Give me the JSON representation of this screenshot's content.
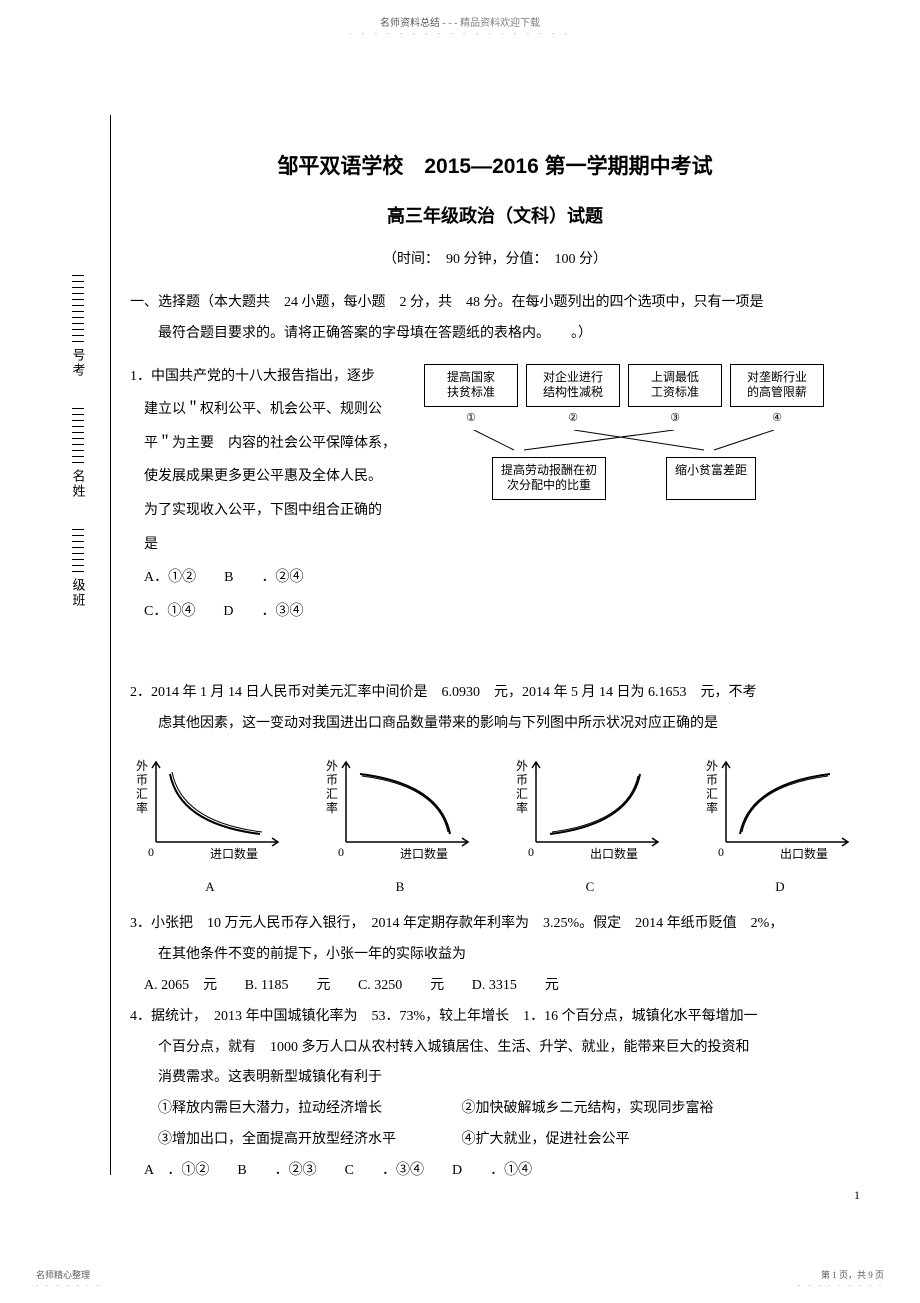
{
  "header": {
    "text_left": "名师资料总结 ",
    "separator": "- - -",
    "text_right": "精品资料欢迎下载"
  },
  "binding_labels": [
    "号考",
    "名姓",
    "级班"
  ],
  "title": "邹平双语学校　2015—2016 第一学期期中考试",
  "subtitle": "高三年级政治（文科）试题",
  "timeinfo": "（时间：　90 分钟，分值：　100 分）",
  "section1": {
    "line1": "一、选择题（本大题共　24 小题，每小题　2 分，共　48 分。在每小题列出的四个选项中，只有一项是",
    "line2": "最符合题目要求的。请将正确答案的字母填在答题纸的表格内。　　。）"
  },
  "q1": {
    "lines": [
      "1．中国共产党的十八大报告指出，逐步",
      "建立以＂权利公平、机会公平、规则公",
      "平＂为主要　内容的社会公平保障体系，",
      "使发展成果更多更公平惠及全体人民。",
      "为了实现收入公平，下图中组合正确的",
      "是",
      "A．①②　　B　　．②④",
      "C．①④　　D　　．③④"
    ],
    "boxes_top": [
      "提高国家\n扶贫标准",
      "对企业进行\n结构性减税",
      "上调最低\n工资标准",
      "对垄断行业\n的高管限薪"
    ],
    "circles": [
      "①",
      "②",
      "③",
      "④"
    ],
    "boxes_bottom": [
      "提高劳动报酬在初\n次分配中的比重",
      "缩小贫富差距"
    ]
  },
  "q2": {
    "line1": "2．2014 年 1 月 14 日人民币对美元汇率中间价是　6.0930　元，2014 年 5 月 14 日为 6.1653　元，不考",
    "line2": "虑其他因素，这一变动对我国进出口商品数量带来的影响与下列图中所示状况对应正确的是",
    "charts": [
      {
        "label": "A",
        "ylabel": "外币汇率",
        "xlabel": "进口数量",
        "curve": "down-concave"
      },
      {
        "label": "B",
        "ylabel": "外币汇率",
        "xlabel": "进口数量",
        "curve": "down-convex"
      },
      {
        "label": "C",
        "ylabel": "外币汇率",
        "xlabel": "出口数量",
        "curve": "up-concave"
      },
      {
        "label": "D",
        "ylabel": "外币汇率",
        "xlabel": "出口数量",
        "curve": "up-convex"
      }
    ]
  },
  "q3": {
    "line1": "3．小张把　10 万元人民币存入银行，　2014 年定期存款年利率为　3.25%。假定　2014 年纸币贬值　2%，",
    "line2": "在其他条件不变的前提下，小张一年的实际收益为",
    "opts": [
      "A. 2065　元",
      "B. 1185　　元",
      "C. 3250　　元",
      "D. 3315　　元"
    ]
  },
  "q4": {
    "line1": "4．据统计，　2013 年中国城镇化率为　53．73%，较上年增长　1．16 个百分点，城镇化水平每增加一",
    "line2": "个百分点，就有　1000 多万人口从农村转入城镇居住、生活、升学、就业，能带来巨大的投资和",
    "line3": "消费需求。这表明新型城镇化有利于",
    "sub1": "①释放内需巨大潜力，拉动经济增长",
    "sub2": "②加快破解城乡二元结构，实现同步富裕",
    "sub3": "③增加出口，全面提高开放型经济水平",
    "sub4": "④扩大就业，促进社会公平",
    "opts": "A　．①②　　B　　．②③　　C　　．③④　　D　　．①④"
  },
  "page_num": "1",
  "footer": {
    "left": "名师精心整理",
    "right": "第 1 页，共 9 页"
  }
}
